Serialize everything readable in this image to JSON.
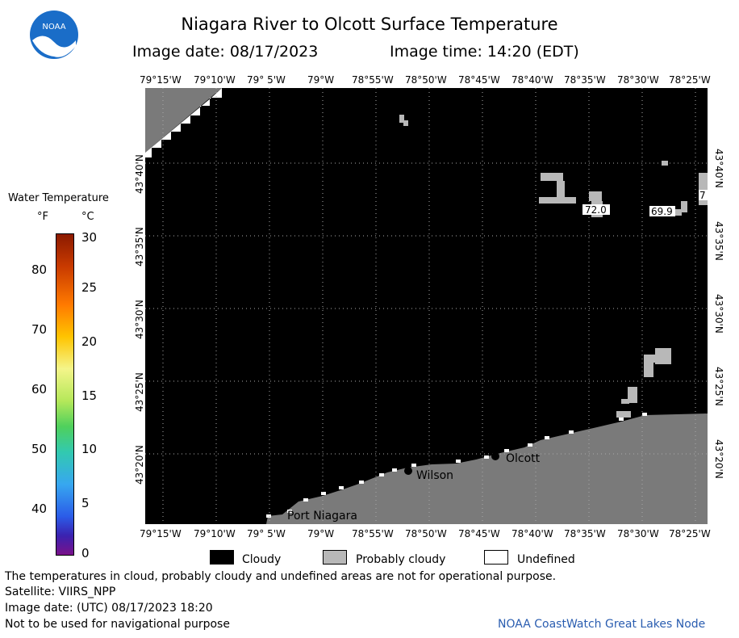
{
  "logo": {
    "text": "NOAA"
  },
  "header": {
    "title": "Niagara River to Olcott Surface Temperature",
    "image_date": "Image date: 08/17/2023",
    "image_time": "Image time: 14:20 (EDT)"
  },
  "axes": {
    "top_longitudes": [
      "79°15'W",
      "79°10'W",
      "79° 5'W",
      "79°W",
      "78°55'W",
      "78°50'W",
      "78°45'W",
      "78°40'W",
      "78°35'W",
      "78°30'W",
      "78°25'W"
    ],
    "bottom_longitudes": [
      "79°15'W",
      "79°10'W",
      "79° 5'W",
      "79°W",
      "78°55'W",
      "78°50'W",
      "78°45'W",
      "78°40'W",
      "78°35'W",
      "78°30'W",
      "78°25'W"
    ],
    "latitudes": [
      "43°40'N",
      "43°35'N",
      "43°30'N",
      "43°25'N",
      "43°20'N"
    ]
  },
  "map": {
    "places": [
      {
        "name": "Olcott"
      },
      {
        "name": "Wilson"
      },
      {
        "name": "Port Niagara"
      }
    ],
    "temp_labels": [
      "72.0",
      "69.9",
      "7"
    ],
    "colors": {
      "cloudy": "#000000",
      "probably_cloudy": "#808080",
      "undefined": "#ffffff",
      "land": "#808080"
    }
  },
  "legend": {
    "title": "Water Temperature",
    "unit_f": "°F",
    "unit_c": "°C",
    "f_ticks": [
      "80",
      "70",
      "60",
      "50",
      "40"
    ],
    "c_ticks": [
      "30",
      "25",
      "20",
      "15",
      "10",
      "5",
      "0"
    ]
  },
  "key": {
    "cloudy": "Cloudy",
    "probably_cloudy": "Probably cloudy",
    "undefined": "Undefined"
  },
  "footer": {
    "note": "The temperatures in cloud, probably cloudy and undefined areas are not for operational purpose.",
    "satellite": "Satellite: VIIRS_NPP",
    "utc_date": "Image date: (UTC) 08/17/2023  18:20",
    "nav_warning": "Not to be used for navigational purpose",
    "credit": "NOAA CoastWatch Great Lakes Node"
  }
}
